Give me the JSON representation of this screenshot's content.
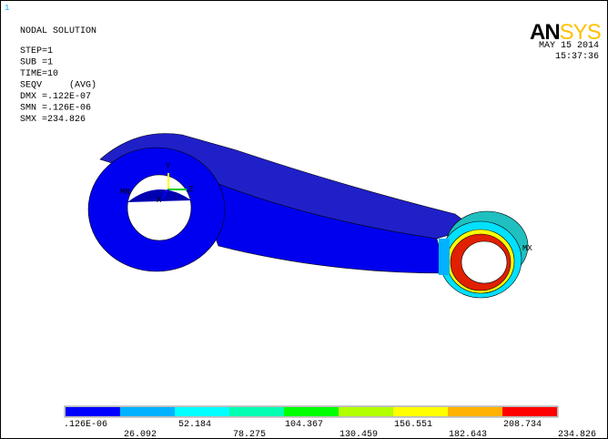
{
  "window_number": "1",
  "header": {
    "title": "NODAL SOLUTION",
    "lines": [
      "STEP=1",
      "SUB =1",
      "TIME=10",
      "SEQV     (AVG)",
      "DMX =.122E-07",
      "SMN =.126E-06",
      "SMX =234.826"
    ]
  },
  "logo": {
    "bold": "AN",
    "light": "SYS"
  },
  "date": "MAY 15 2014",
  "time": "15:37:36",
  "triad": {
    "y": "Y",
    "z": "Z",
    "x": "X"
  },
  "markers": {
    "min": "MN",
    "max": "MX"
  },
  "legend": {
    "colors": [
      "#0000ff",
      "#00b2ff",
      "#00ffff",
      "#00ffb2",
      "#00ff00",
      "#b2ff00",
      "#ffff00",
      "#ffb200",
      "#ff0000"
    ],
    "labels": [
      ".126E-06",
      "26.092",
      "52.184",
      "78.275",
      "104.367",
      "130.459",
      "156.551",
      "182.643",
      "208.734",
      "234.826"
    ]
  }
}
